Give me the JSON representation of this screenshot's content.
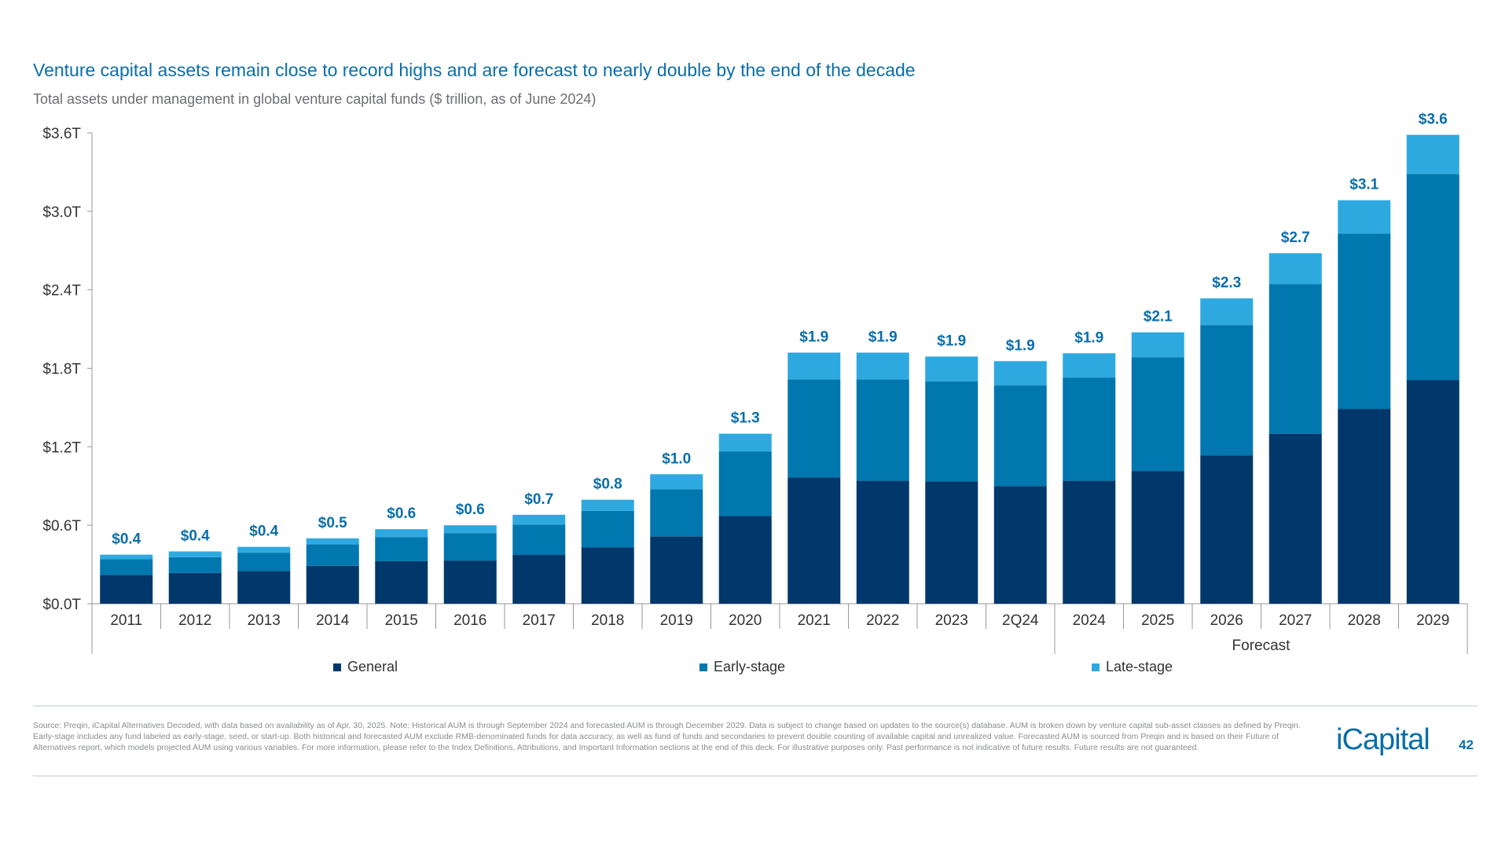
{
  "header": {
    "title": "Venture capital assets remain close to record highs and are forecast to nearly double by the end of the decade",
    "subtitle": "Total assets under management in global venture capital funds ($ trillion, as of June 2024)"
  },
  "chart_data": {
    "type": "bar",
    "stacked": true,
    "categories": [
      "2011",
      "2012",
      "2013",
      "2014",
      "2015",
      "2016",
      "2017",
      "2018",
      "2019",
      "2020",
      "2021",
      "2022",
      "2023",
      "2Q24",
      "2024",
      "2025",
      "2026",
      "2027",
      "2028",
      "2029"
    ],
    "series": [
      {
        "name": "General",
        "color": "#00386b",
        "values": [
          0.22,
          0.235,
          0.25,
          0.29,
          0.325,
          0.33,
          0.375,
          0.43,
          0.515,
          0.67,
          0.965,
          0.94,
          0.935,
          0.9,
          0.94,
          1.015,
          1.135,
          1.3,
          1.49,
          1.71
        ]
      },
      {
        "name": "Early-stage",
        "color": "#0077ae",
        "values": [
          0.12,
          0.12,
          0.14,
          0.165,
          0.185,
          0.21,
          0.23,
          0.28,
          0.36,
          0.495,
          0.75,
          0.775,
          0.765,
          0.77,
          0.79,
          0.87,
          0.995,
          1.145,
          1.34,
          1.575
        ]
      },
      {
        "name": "Late-stage",
        "color": "#2ea9e0",
        "values": [
          0.035,
          0.045,
          0.045,
          0.045,
          0.06,
          0.06,
          0.075,
          0.085,
          0.115,
          0.135,
          0.205,
          0.205,
          0.19,
          0.185,
          0.185,
          0.19,
          0.205,
          0.235,
          0.255,
          0.3
        ]
      }
    ],
    "data_labels": [
      "$0.4",
      "$0.4",
      "$0.4",
      "$0.5",
      "$0.6",
      "$0.6",
      "$0.7",
      "$0.8",
      "$1.0",
      "$1.3",
      "$1.9",
      "$1.9",
      "$1.9",
      "$1.9",
      "$1.9",
      "$2.1",
      "$2.3",
      "$2.7",
      "$3.1",
      "$3.6"
    ],
    "y_ticks": [
      "$0.0T",
      "$0.6T",
      "$1.2T",
      "$1.8T",
      "$2.4T",
      "$3.0T",
      "$3.6T"
    ],
    "y_tick_values": [
      0,
      0.6,
      1.2,
      1.8,
      2.4,
      3.0,
      3.6
    ],
    "ylim": [
      0,
      3.6
    ],
    "group_label": "Forecast",
    "group_categories": [
      "2024",
      "2025",
      "2026",
      "2027",
      "2028",
      "2029"
    ],
    "grid": false,
    "legend_position": "bottom",
    "label_color": "#0a6eaa"
  },
  "footer": {
    "source": "Source: Preqin, iCapital Alternatives Decoded, with data based on availability as of Apr. 30, 2025. Note: Historical AUM is through September 2024 and forecasted AUM is through December 2029. Data is subject to change based on updates to the source(s) database. AUM is broken down by venture capital sub-asset classes as defined by Preqin. Early-stage includes any fund labeled as early-stage, seed, or start-up. Both historical and forecasted AUM exclude RMB-denominated funds for data accuracy, as well as fund of funds and secondaries to prevent double counting of available capital and unrealized value. Forecasted AUM is sourced from Preqin and is based on their Future of Alternatives report, which models projected AUM using various variables. For more information, please refer to the Index Definitions, Attributions, and Important Information sections at the end of this deck. For illustrative purposes only. Past performance is not indicative of future results. Future results are not guaranteed.",
    "logo": "iCapital",
    "page_number": "42"
  }
}
